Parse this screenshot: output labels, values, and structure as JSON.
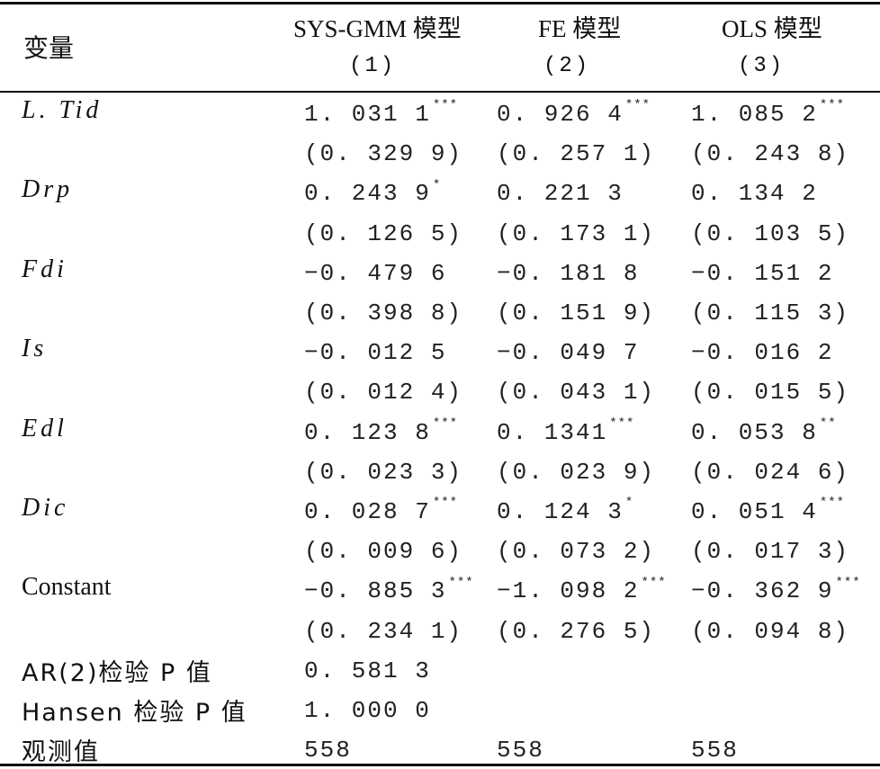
{
  "header": {
    "variable_label": "变量",
    "models": [
      {
        "name": "SYS-GMM 模型",
        "number": "(1)"
      },
      {
        "name": "FE 模型",
        "number": "(2)"
      },
      {
        "name": "OLS 模型",
        "number": "(3)"
      }
    ]
  },
  "rows": [
    {
      "label": "L. Tid",
      "cells": [
        {
          "value": " 1. 031 1",
          "stars": "***"
        },
        {
          "value": " 0. 926 4",
          "stars": "***"
        },
        {
          "value": " 1. 085 2",
          "stars": "***"
        }
      ]
    },
    {
      "label": "",
      "cells": [
        {
          "value": "(0. 329 9)",
          "stars": ""
        },
        {
          "value": "(0. 257 1)",
          "stars": ""
        },
        {
          "value": "(0. 243 8)",
          "stars": ""
        }
      ]
    },
    {
      "label": "Drp",
      "cells": [
        {
          "value": " 0. 243 9",
          "stars": "*"
        },
        {
          "value": " 0. 221 3",
          "stars": ""
        },
        {
          "value": " 0. 134 2",
          "stars": ""
        }
      ]
    },
    {
      "label": "",
      "cells": [
        {
          "value": "(0. 126 5)",
          "stars": ""
        },
        {
          "value": "(0. 173 1)",
          "stars": ""
        },
        {
          "value": "(0. 103 5)",
          "stars": ""
        }
      ]
    },
    {
      "label": "Fdi",
      "cells": [
        {
          "value": "−0. 479 6",
          "stars": ""
        },
        {
          "value": "−0. 181 8",
          "stars": ""
        },
        {
          "value": "−0. 151 2",
          "stars": ""
        }
      ]
    },
    {
      "label": "",
      "cells": [
        {
          "value": "(0. 398 8)",
          "stars": ""
        },
        {
          "value": "(0. 151 9)",
          "stars": ""
        },
        {
          "value": "(0. 115 3)",
          "stars": ""
        }
      ]
    },
    {
      "label": "Is",
      "cells": [
        {
          "value": "−0. 012 5",
          "stars": ""
        },
        {
          "value": "−0. 049 7",
          "stars": ""
        },
        {
          "value": "−0. 016 2",
          "stars": ""
        }
      ]
    },
    {
      "label": "",
      "cells": [
        {
          "value": "(0. 012 4)",
          "stars": ""
        },
        {
          "value": "(0. 043 1)",
          "stars": ""
        },
        {
          "value": "(0. 015 5)",
          "stars": ""
        }
      ]
    },
    {
      "label": "Edl",
      "cells": [
        {
          "value": " 0. 123 8",
          "stars": "***"
        },
        {
          "value": " 0. 1341",
          "stars": "***"
        },
        {
          "value": " 0. 053 8",
          "stars": "**"
        }
      ]
    },
    {
      "label": "",
      "cells": [
        {
          "value": "(0. 023 3)",
          "stars": ""
        },
        {
          "value": "(0. 023 9)",
          "stars": ""
        },
        {
          "value": "(0. 024 6)",
          "stars": ""
        }
      ]
    },
    {
      "label": "Dic",
      "cells": [
        {
          "value": " 0. 028 7",
          "stars": "***"
        },
        {
          "value": " 0. 124 3",
          "stars": "*"
        },
        {
          "value": " 0. 051 4",
          "stars": "***"
        }
      ]
    },
    {
      "label": "",
      "cells": [
        {
          "value": "(0. 009 6)",
          "stars": ""
        },
        {
          "value": "(0. 073 2)",
          "stars": ""
        },
        {
          "value": "(0. 017 3)",
          "stars": ""
        }
      ]
    },
    {
      "label": "Constant",
      "cells": [
        {
          "value": "−0. 885 3",
          "stars": "***"
        },
        {
          "value": "−1. 098 2",
          "stars": "***"
        },
        {
          "value": "−0. 362 9",
          "stars": "***"
        }
      ]
    },
    {
      "label": "",
      "cells": [
        {
          "value": "(0. 234 1)",
          "stars": ""
        },
        {
          "value": "(0. 276 5)",
          "stars": ""
        },
        {
          "value": "(0. 094 8)",
          "stars": ""
        }
      ]
    },
    {
      "label": "AR(2)检验 P 值",
      "cells": [
        {
          "value": " 0. 581 3",
          "stars": ""
        },
        {
          "value": "",
          "stars": ""
        },
        {
          "value": "",
          "stars": ""
        }
      ]
    },
    {
      "label": "Hansen 检验 P 值",
      "cells": [
        {
          "value": " 1. 000 0",
          "stars": ""
        },
        {
          "value": "",
          "stars": ""
        },
        {
          "value": "",
          "stars": ""
        }
      ]
    },
    {
      "label": "观测值",
      "cells": [
        {
          "value": "558",
          "stars": ""
        },
        {
          "value": "558",
          "stars": ""
        },
        {
          "value": "558",
          "stars": ""
        }
      ]
    }
  ]
}
